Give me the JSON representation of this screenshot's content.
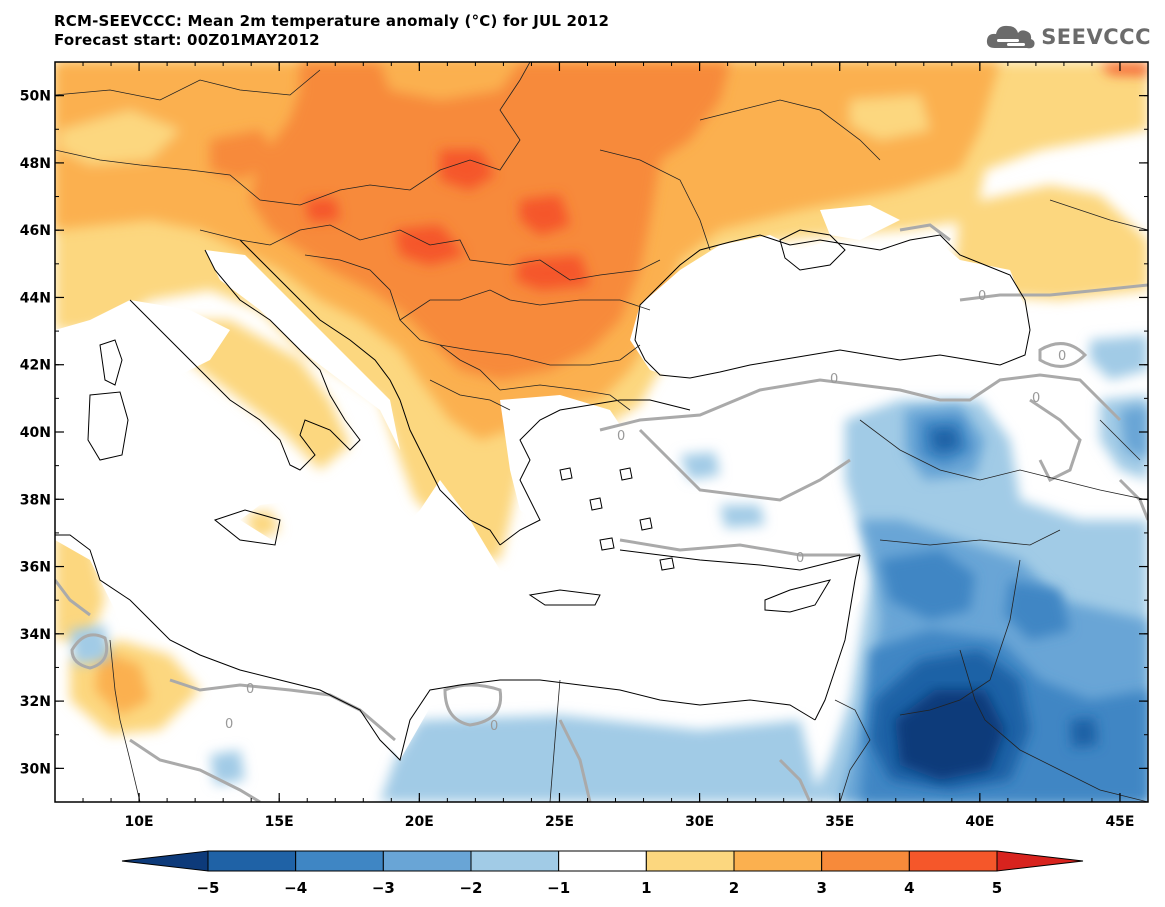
{
  "header": {
    "title_line1": "RCM-SEEVCCC: Mean 2m temperature anomaly (°C) for JUL 2012",
    "title_line2": "Forecast start: 00Z01MAY2012",
    "logo_text": "SEEVCCC"
  },
  "map": {
    "lon_range": [
      7,
      46
    ],
    "lat_range": [
      29,
      51
    ],
    "lat_ticks": [
      {
        "value": 50,
        "label": "50N"
      },
      {
        "value": 48,
        "label": "48N"
      },
      {
        "value": 46,
        "label": "46N"
      },
      {
        "value": 44,
        "label": "44N"
      },
      {
        "value": 42,
        "label": "42N"
      },
      {
        "value": 40,
        "label": "40N"
      },
      {
        "value": 38,
        "label": "38N"
      },
      {
        "value": 36,
        "label": "36N"
      },
      {
        "value": 34,
        "label": "34N"
      },
      {
        "value": 32,
        "label": "32N"
      },
      {
        "value": 30,
        "label": "30N"
      }
    ],
    "lon_ticks": [
      {
        "value": 10,
        "label": "10E"
      },
      {
        "value": 15,
        "label": "15E"
      },
      {
        "value": 20,
        "label": "20E"
      },
      {
        "value": 25,
        "label": "25E"
      },
      {
        "value": 30,
        "label": "30E"
      },
      {
        "value": 35,
        "label": "35E"
      },
      {
        "value": 40,
        "label": "40E"
      },
      {
        "value": 45,
        "label": "45E"
      }
    ],
    "contour_label": "0"
  },
  "colorbar": {
    "labels": [
      "−5",
      "−4",
      "−3",
      "−2",
      "−1",
      "1",
      "2",
      "3",
      "4",
      "5"
    ],
    "colors": [
      "#0d3a7a",
      "#1f62a6",
      "#3f86c4",
      "#69a5d6",
      "#a1cbe6",
      "#ffffff",
      "#fcd77f",
      "#fbb04f",
      "#f78a3a",
      "#f5572a",
      "#d8231e"
    ]
  }
}
